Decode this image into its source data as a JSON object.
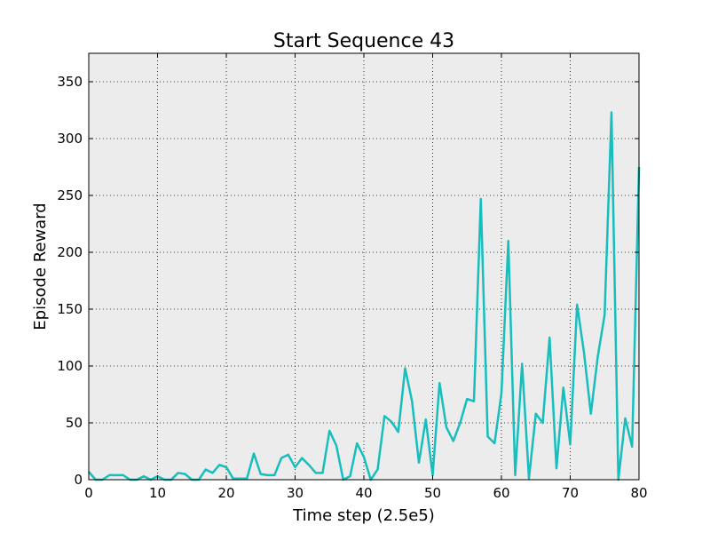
{
  "chart_data": {
    "type": "line",
    "title": "Start Sequence 43",
    "xlabel": "Time step (2.5e5)",
    "ylabel": "Episode Reward",
    "xlim": [
      0,
      80
    ],
    "ylim": [
      0,
      375
    ],
    "xticks": [
      0,
      10,
      20,
      30,
      40,
      50,
      60,
      70,
      80
    ],
    "yticks": [
      0,
      50,
      100,
      150,
      200,
      250,
      300,
      350
    ],
    "grid": true,
    "plot_background": "#ececec",
    "series": [
      {
        "color": "#17bebe",
        "x": [
          0,
          1,
          2,
          3,
          4,
          5,
          6,
          7,
          8,
          9,
          10,
          11,
          12,
          13,
          14,
          15,
          16,
          17,
          18,
          19,
          20,
          21,
          22,
          23,
          24,
          25,
          26,
          27,
          28,
          29,
          30,
          31,
          32,
          33,
          34,
          35,
          36,
          37,
          38,
          39,
          40,
          41,
          42,
          43,
          44,
          45,
          46,
          47,
          48,
          49,
          50,
          51,
          52,
          53,
          54,
          55,
          56,
          57,
          58,
          59,
          60,
          61,
          62,
          63,
          64,
          65,
          66,
          67,
          68,
          69,
          70,
          71,
          72,
          73,
          74,
          75,
          76,
          77,
          78,
          79,
          80
        ],
        "y": [
          7,
          0,
          0,
          4,
          4,
          4,
          0,
          0,
          3,
          0,
          3,
          0,
          0,
          6,
          5,
          0,
          0,
          9,
          6,
          13,
          11,
          1,
          1,
          1,
          23,
          5,
          4,
          4,
          19,
          22,
          11,
          19,
          13,
          6,
          6,
          43,
          30,
          0,
          3,
          32,
          20,
          0,
          9,
          56,
          51,
          42,
          98,
          69,
          15,
          53,
          4,
          85,
          46,
          34,
          50,
          71,
          69,
          247,
          38,
          32,
          76,
          210,
          4,
          102,
          1,
          58,
          50,
          125,
          10,
          81,
          31,
          154,
          112,
          58,
          108,
          145,
          323,
          0,
          54,
          29,
          275
        ]
      }
    ]
  }
}
